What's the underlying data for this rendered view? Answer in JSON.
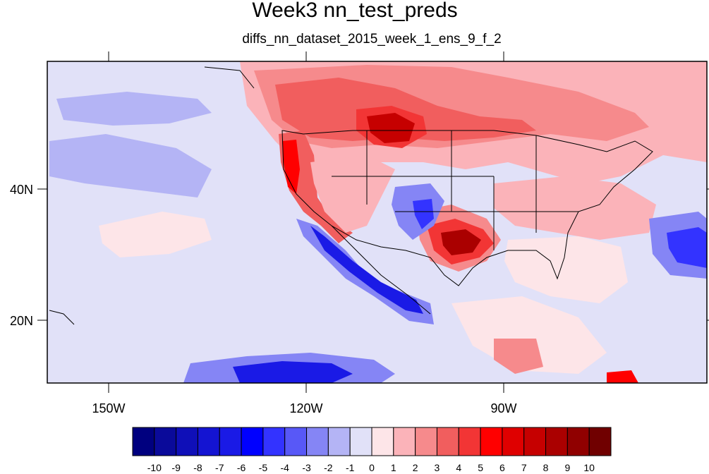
{
  "title": "Week3 nn_test_preds",
  "subtitle": "diffs_nn_dataset_2015_week_1_ens_9_f_2",
  "lat_labels": [
    "40N",
    "20N"
  ],
  "lon_labels": [
    "150W",
    "120W",
    "90W"
  ],
  "colorbar": {
    "colors": [
      "#00007f",
      "#0a0a9a",
      "#0f0fb8",
      "#1414d2",
      "#1a1ae6",
      "#0000ff",
      "#3333ff",
      "#5858f7",
      "#8585f5",
      "#b4b4f5",
      "#e1e1f8",
      "#fde5e8",
      "#fbb3b9",
      "#f68a8c",
      "#f15e5e",
      "#f23535",
      "#ff0000",
      "#df0000",
      "#c60000",
      "#aa0000",
      "#900000",
      "#700000"
    ],
    "labels": [
      "-10",
      "-9",
      "-8",
      "-7",
      "-6",
      "-5",
      "-4",
      "-3",
      "-2",
      "-1",
      "0",
      "1",
      "2",
      "3",
      "4",
      "5",
      "6",
      "7",
      "8",
      "9",
      "10"
    ]
  }
}
